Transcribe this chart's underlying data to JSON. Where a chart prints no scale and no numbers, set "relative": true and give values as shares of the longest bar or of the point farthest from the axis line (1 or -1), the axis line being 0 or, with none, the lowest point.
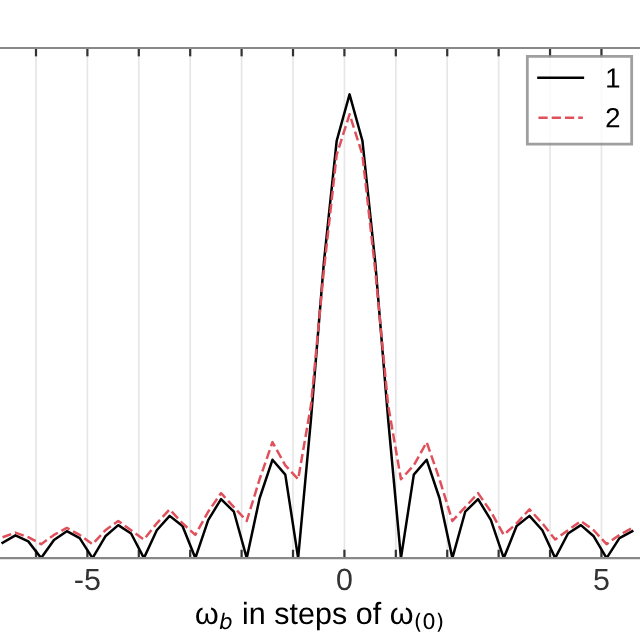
{
  "chart_data": {
    "type": "line",
    "relative": true,
    "xlabel": "ω$_{b}$ in steps of ω$_{(0)}$",
    "x": [
      -6.65,
      -6.4,
      -6.15,
      -5.9,
      -5.65,
      -5.4,
      -5.15,
      -4.9,
      -4.65,
      -4.4,
      -4.15,
      -3.9,
      -3.65,
      -3.4,
      -3.15,
      -2.9,
      -2.65,
      -2.4,
      -2.15,
      -1.9,
      -1.65,
      -1.4,
      -1.15,
      -0.9,
      -0.65,
      -0.4,
      -0.15,
      0.1,
      0.35,
      0.6,
      0.85,
      1.1,
      1.35,
      1.6,
      1.85,
      2.1,
      2.35,
      2.6,
      2.85,
      3.1,
      3.35,
      3.6,
      3.85,
      4.1,
      4.35,
      4.6,
      4.85,
      5.1,
      5.35,
      5.6
    ],
    "series": [
      {
        "name": "1",
        "color": "#000000",
        "line_style": "solid",
        "values": [
          0.033,
          0.049,
          0.036,
          0,
          0.039,
          0.058,
          0.043,
          0,
          0.047,
          0.071,
          0.053,
          0,
          0.06,
          0.091,
          0.069,
          0,
          0.082,
          0.127,
          0.1,
          0,
          0.129,
          0.212,
          0.18,
          0,
          0.3,
          0.637,
          0.9,
          1,
          0.9,
          0.637,
          0.3,
          0,
          0.18,
          0.212,
          0.129,
          0,
          0.1,
          0.127,
          0.082,
          0,
          0.069,
          0.091,
          0.06,
          0,
          0.053,
          0.071,
          0.047,
          0,
          0.043,
          0.058
        ]
      },
      {
        "name": "2",
        "color": "#e0505a",
        "line_style": "dashed",
        "values": [
          0.045,
          0.055,
          0.045,
          0.03,
          0.05,
          0.065,
          0.05,
          0.03,
          0.06,
          0.08,
          0.06,
          0.04,
          0.075,
          0.105,
          0.075,
          0.05,
          0.1,
          0.14,
          0.11,
          0.08,
          0.17,
          0.25,
          0.2,
          0.17,
          0.33,
          0.62,
          0.87,
          0.957,
          0.87,
          0.62,
          0.33,
          0.17,
          0.2,
          0.25,
          0.17,
          0.08,
          0.11,
          0.14,
          0.1,
          0.05,
          0.075,
          0.105,
          0.075,
          0.04,
          0.06,
          0.08,
          0.06,
          0.03,
          0.05,
          0.065
        ]
      }
    ],
    "xlim": [
      -6.7,
      5.75
    ],
    "xticks": [
      {
        "value": -6,
        "label": null
      },
      -5,
      {
        "value": -4,
        "label": null
      },
      {
        "value": -3,
        "label": null
      },
      {
        "value": -2,
        "label": null
      },
      {
        "value": -1,
        "label": null
      },
      0,
      {
        "value": 1,
        "label": null
      },
      {
        "value": 2,
        "label": null
      },
      {
        "value": 3,
        "label": null
      },
      {
        "value": 4,
        "label": null
      },
      5
    ],
    "grid": "x",
    "legend": "top right"
  }
}
